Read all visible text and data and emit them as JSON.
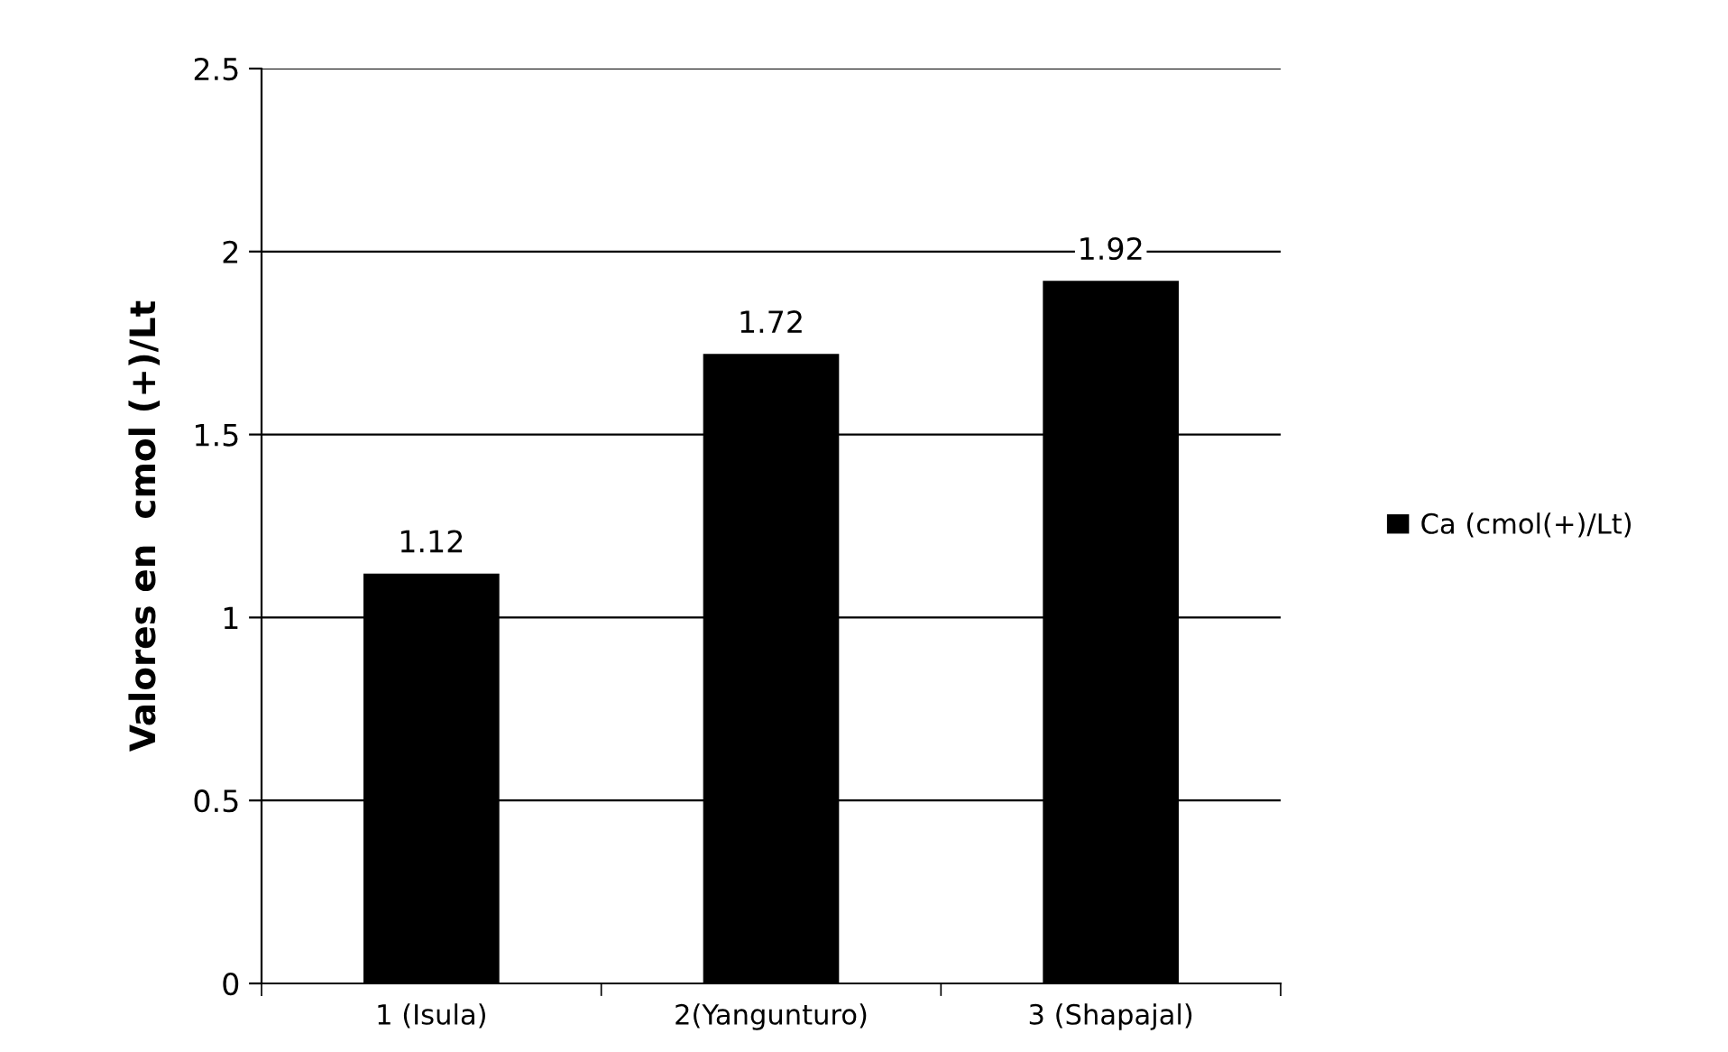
{
  "chart_data": {
    "type": "bar",
    "ylabel": "Valores en  cmol (+)/Lt",
    "categories": [
      "1 (Isula)",
      "2(Yangunturo)",
      "3 (Shapajal)"
    ],
    "series": [
      {
        "name": "Ca (cmol(+)/Lt)",
        "color": "#000000",
        "values": [
          1.12,
          1.72,
          1.92
        ]
      }
    ],
    "ylim": [
      0,
      2.5
    ],
    "yticks": [
      0,
      0.5,
      1,
      1.5,
      2,
      2.5
    ],
    "grid": "y",
    "legend": "right",
    "data_labels": true
  }
}
